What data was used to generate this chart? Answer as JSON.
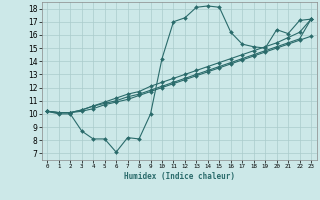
{
  "xlabel": "Humidex (Indice chaleur)",
  "ylabel": "",
  "bg_color": "#cce8e8",
  "line_color": "#2a6b6b",
  "grid_color": "#aacccc",
  "xlim": [
    -0.5,
    23.5
  ],
  "ylim": [
    6.5,
    18.5
  ],
  "xticks": [
    0,
    1,
    2,
    3,
    4,
    5,
    6,
    7,
    8,
    9,
    10,
    11,
    12,
    13,
    14,
    15,
    16,
    17,
    18,
    19,
    20,
    21,
    22,
    23
  ],
  "yticks": [
    7,
    8,
    9,
    10,
    11,
    12,
    13,
    14,
    15,
    16,
    17,
    18
  ],
  "series": [
    {
      "x": [
        0,
        1,
        2,
        3,
        4,
        5,
        6,
        7,
        8,
        9,
        10,
        11,
        12,
        13,
        14,
        15,
        16,
        17,
        18,
        19,
        20,
        21,
        22,
        23
      ],
      "y": [
        10.2,
        10.0,
        10.0,
        8.7,
        8.1,
        8.1,
        7.1,
        8.2,
        8.1,
        10.0,
        14.2,
        17.0,
        17.3,
        18.1,
        18.2,
        18.1,
        16.2,
        15.3,
        15.1,
        15.0,
        16.4,
        16.1,
        17.1,
        17.2
      ]
    },
    {
      "x": [
        0,
        1,
        2,
        3,
        4,
        5,
        6,
        7,
        8,
        9,
        10,
        11,
        12,
        13,
        14,
        15,
        16,
        17,
        18,
        19,
        20,
        21,
        22,
        23
      ],
      "y": [
        10.2,
        10.1,
        10.1,
        10.2,
        10.4,
        10.7,
        10.9,
        11.1,
        11.4,
        11.7,
        12.0,
        12.3,
        12.6,
        12.9,
        13.2,
        13.5,
        13.8,
        14.1,
        14.4,
        14.7,
        15.0,
        15.3,
        15.6,
        15.9
      ]
    },
    {
      "x": [
        0,
        1,
        2,
        3,
        4,
        5,
        6,
        7,
        8,
        9,
        10,
        11,
        12,
        13,
        14,
        15,
        16,
        17,
        18,
        19,
        20,
        21,
        22,
        23
      ],
      "y": [
        10.2,
        10.1,
        10.1,
        10.3,
        10.6,
        10.8,
        11.0,
        11.3,
        11.5,
        11.8,
        12.1,
        12.4,
        12.7,
        13.0,
        13.3,
        13.6,
        13.9,
        14.2,
        14.5,
        14.8,
        15.1,
        15.4,
        15.7,
        17.2
      ]
    },
    {
      "x": [
        0,
        1,
        2,
        3,
        4,
        5,
        6,
        7,
        8,
        9,
        10,
        11,
        12,
        13,
        14,
        15,
        16,
        17,
        18,
        19,
        20,
        21,
        22,
        23
      ],
      "y": [
        10.2,
        10.1,
        10.1,
        10.3,
        10.6,
        10.9,
        11.2,
        11.5,
        11.7,
        12.1,
        12.4,
        12.7,
        13.0,
        13.3,
        13.6,
        13.9,
        14.2,
        14.5,
        14.8,
        15.1,
        15.4,
        15.8,
        16.2,
        17.2
      ]
    }
  ]
}
